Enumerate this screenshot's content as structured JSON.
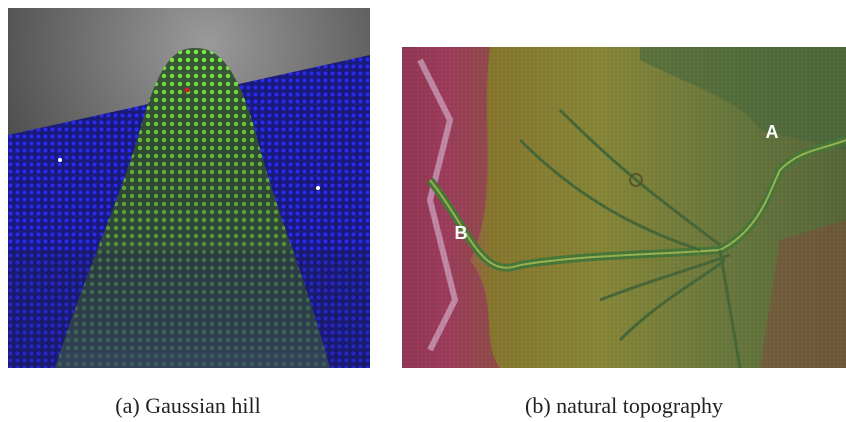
{
  "panels": [
    {
      "caption": "(a) Gaussian hill"
    },
    {
      "caption": "(b) natural topography",
      "labels": [
        "A",
        "B"
      ]
    }
  ]
}
